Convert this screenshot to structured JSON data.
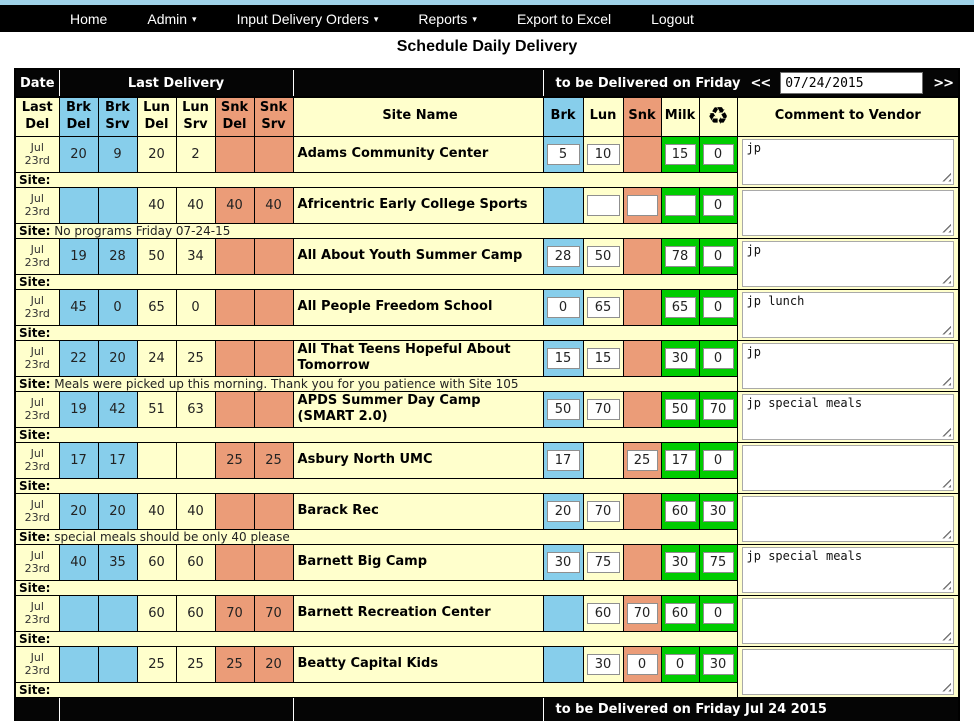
{
  "nav": {
    "items": [
      {
        "label": "Home",
        "dropdown": false
      },
      {
        "label": "Admin",
        "dropdown": true
      },
      {
        "label": "Input Delivery Orders",
        "dropdown": true
      },
      {
        "label": "Reports",
        "dropdown": true
      },
      {
        "label": "Export to Excel",
        "dropdown": false
      },
      {
        "label": "Logout",
        "dropdown": false
      }
    ]
  },
  "title": "Schedule Daily Delivery",
  "header": {
    "date_label": "Date",
    "last_delivery_label": "Last Delivery",
    "deliver_on": "to be Delivered on Friday",
    "prev": "<<",
    "date_value": "07/24/2015",
    "next": ">>"
  },
  "columns": {
    "last_delivery_cols": [
      {
        "id": "last-del",
        "l1": "Last",
        "l2": "Del",
        "color": "yellow"
      },
      {
        "id": "brk-del",
        "l1": "Brk",
        "l2": "Del",
        "color": "blue"
      },
      {
        "id": "brk-srv",
        "l1": "Brk",
        "l2": "Srv",
        "color": "blue"
      },
      {
        "id": "lun-del",
        "l1": "Lun",
        "l2": "Del",
        "color": "yellow"
      },
      {
        "id": "lun-srv",
        "l1": "Lun",
        "l2": "Srv",
        "color": "yellow"
      },
      {
        "id": "snk-del",
        "l1": "Snk",
        "l2": "Del",
        "color": "salmon"
      },
      {
        "id": "snk-srv",
        "l1": "Snk",
        "l2": "Srv",
        "color": "salmon"
      }
    ],
    "site_name": "Site Name",
    "order_cols": [
      {
        "id": "brk",
        "label": "Brk",
        "color": "blue"
      },
      {
        "id": "lun",
        "label": "Lun",
        "color": "yellow"
      },
      {
        "id": "snk",
        "label": "Snk",
        "color": "salmon"
      },
      {
        "id": "milk",
        "label": "Milk",
        "color": "yellow"
      }
    ],
    "recycle_icon_glyph": "♻",
    "comment": "Comment to Vendor"
  },
  "site_label": "Site:",
  "rows": [
    {
      "name": "Adams Community Center",
      "date": {
        "l1": "Jul",
        "l2": "23rd"
      },
      "last": {
        "brk_del": "20",
        "brk_srv": "9",
        "lun_del": "20",
        "lun_srv": "2",
        "snk_del": "",
        "snk_srv": ""
      },
      "inputs": {
        "brk": "5",
        "lun": "10",
        "snk": null,
        "milk": "15",
        "recycle": "0"
      },
      "comment": "jp",
      "site_note": ""
    },
    {
      "name": "Africentric Early College Sports",
      "date": {
        "l1": "Jul",
        "l2": "23rd"
      },
      "last": {
        "brk_del": "",
        "brk_srv": "",
        "lun_del": "40",
        "lun_srv": "40",
        "snk_del": "40",
        "snk_srv": "40"
      },
      "inputs": {
        "brk": null,
        "lun": "",
        "snk": "",
        "milk": "",
        "recycle": "0"
      },
      "comment": "",
      "site_note": "No programs Friday 07-24-15"
    },
    {
      "name": "All About Youth Summer Camp",
      "date": {
        "l1": "Jul",
        "l2": "23rd"
      },
      "last": {
        "brk_del": "19",
        "brk_srv": "28",
        "lun_del": "50",
        "lun_srv": "34",
        "snk_del": "",
        "snk_srv": ""
      },
      "inputs": {
        "brk": "28",
        "lun": "50",
        "snk": null,
        "milk": "78",
        "recycle": "0"
      },
      "comment": "jp",
      "site_note": ""
    },
    {
      "name": "All People Freedom School",
      "date": {
        "l1": "Jul",
        "l2": "23rd"
      },
      "last": {
        "brk_del": "45",
        "brk_srv": "0",
        "lun_del": "65",
        "lun_srv": "0",
        "snk_del": "",
        "snk_srv": ""
      },
      "inputs": {
        "brk": "0",
        "lun": "65",
        "snk": null,
        "milk": "65",
        "recycle": "0"
      },
      "comment": "jp lunch",
      "site_note": ""
    },
    {
      "name": "All That Teens Hopeful About Tomorrow",
      "date": {
        "l1": "Jul",
        "l2": "23rd"
      },
      "last": {
        "brk_del": "22",
        "brk_srv": "20",
        "lun_del": "24",
        "lun_srv": "25",
        "snk_del": "",
        "snk_srv": ""
      },
      "inputs": {
        "brk": "15",
        "lun": "15",
        "snk": null,
        "milk": "30",
        "recycle": "0"
      },
      "comment": "jp",
      "site_note": "Meals were picked up this morning. Thank you for you patience with Site 105"
    },
    {
      "name": "APDS Summer Day Camp (SMART 2.0)",
      "date": {
        "l1": "Jul",
        "l2": "23rd"
      },
      "last": {
        "brk_del": "19",
        "brk_srv": "42",
        "lun_del": "51",
        "lun_srv": "63",
        "snk_del": "",
        "snk_srv": ""
      },
      "inputs": {
        "brk": "50",
        "lun": "70",
        "snk": null,
        "milk": "50",
        "recycle": "70"
      },
      "comment": "jp special meals",
      "site_note": ""
    },
    {
      "name": "Asbury North UMC",
      "date": {
        "l1": "Jul",
        "l2": "23rd"
      },
      "last": {
        "brk_del": "17",
        "brk_srv": "17",
        "lun_del": "",
        "lun_srv": "",
        "snk_del": "25",
        "snk_srv": "25"
      },
      "inputs": {
        "brk": "17",
        "lun": null,
        "snk": "25",
        "milk": "17",
        "recycle": "0"
      },
      "comment": "",
      "site_note": ""
    },
    {
      "name": "Barack Rec",
      "date": {
        "l1": "Jul",
        "l2": "23rd"
      },
      "last": {
        "brk_del": "20",
        "brk_srv": "20",
        "lun_del": "40",
        "lun_srv": "40",
        "snk_del": "",
        "snk_srv": ""
      },
      "inputs": {
        "brk": "20",
        "lun": "70",
        "snk": null,
        "milk": "60",
        "recycle": "30"
      },
      "comment": "",
      "site_note": "special meals should be only 40 please"
    },
    {
      "name": "Barnett Big Camp",
      "date": {
        "l1": "Jul",
        "l2": "23rd"
      },
      "last": {
        "brk_del": "40",
        "brk_srv": "35",
        "lun_del": "60",
        "lun_srv": "60",
        "snk_del": "",
        "snk_srv": ""
      },
      "inputs": {
        "brk": "30",
        "lun": "75",
        "snk": null,
        "milk": "30",
        "recycle": "75"
      },
      "comment": "jp special meals",
      "site_note": ""
    },
    {
      "name": "Barnett Recreation Center",
      "date": {
        "l1": "Jul",
        "l2": "23rd"
      },
      "last": {
        "brk_del": "",
        "brk_srv": "",
        "lun_del": "60",
        "lun_srv": "60",
        "snk_del": "70",
        "snk_srv": "70"
      },
      "inputs": {
        "brk": null,
        "lun": "60",
        "snk": "70",
        "milk": "60",
        "recycle": "0"
      },
      "comment": "",
      "site_note": ""
    },
    {
      "name": "Beatty Capital Kids",
      "date": {
        "l1": "Jul",
        "l2": "23rd"
      },
      "last": {
        "brk_del": "",
        "brk_srv": "",
        "lun_del": "25",
        "lun_srv": "25",
        "snk_del": "25",
        "snk_srv": "20"
      },
      "inputs": {
        "brk": null,
        "lun": "30",
        "snk": "0",
        "milk": "0",
        "recycle": "30"
      },
      "comment": "",
      "site_note": ""
    }
  ],
  "footer": {
    "text": "to be Delivered on Friday Jul 24 2015"
  },
  "colors": {
    "breakfast_blue": "#87ceeb",
    "snack_salmon": "#eb9c78",
    "base_yellow": "#ffffcc",
    "confirm_green": "#00cc00",
    "bar_black": "#050505",
    "top_strip_blue": "#9fd2e8"
  }
}
